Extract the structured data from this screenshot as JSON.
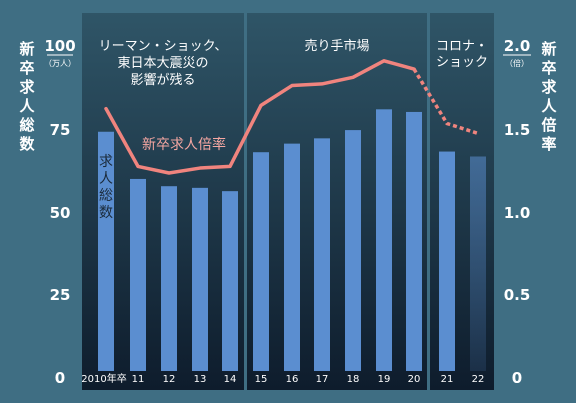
{
  "chart_data": {
    "type": "bar",
    "categories": [
      "2010年卒",
      "11",
      "12",
      "13",
      "14",
      "15",
      "16",
      "17",
      "18",
      "19",
      "20",
      "21",
      "22"
    ],
    "left_axis": {
      "title": "新卒求人総数",
      "unit": "（万人）",
      "ticks": [
        "100",
        "75",
        "50",
        "25",
        "0"
      ],
      "ylim": [
        0,
        100
      ]
    },
    "right_axis": {
      "title": "新卒求人倍率",
      "unit": "（倍）",
      "ticks": [
        "2.0",
        "1.5",
        "1.0",
        "0.5",
        "0"
      ],
      "ylim": [
        0,
        2.0
      ]
    },
    "series": [
      {
        "name": "求人総数",
        "type": "bar",
        "axis": "left",
        "values": [
          72.5,
          58.2,
          56.0,
          55.5,
          54.5,
          66.3,
          68.9,
          70.5,
          73.0,
          79.3,
          78.5,
          66.5,
          65.0
        ],
        "color": "#5b8ed0"
      },
      {
        "name": "新卒求人倍率",
        "type": "line",
        "axis": "right",
        "values": [
          1.59,
          1.24,
          1.2,
          1.23,
          1.24,
          1.61,
          1.73,
          1.74,
          1.78,
          1.88,
          1.83,
          1.5,
          1.44
        ],
        "dashed_from_index": 11,
        "color": "#f0847e"
      }
    ],
    "periods": [
      {
        "label_lines": [
          "リーマン・ショック、",
          "東日本大震災の",
          "影響が残る"
        ],
        "from": 0,
        "to": 4
      },
      {
        "label_lines": [
          "売り手市場"
        ],
        "from": 5,
        "to": 10
      },
      {
        "label_lines": [
          "コロナ・",
          "ショック"
        ],
        "from": 11,
        "to": 12
      }
    ],
    "grid": false,
    "background": "#3f6e83",
    "panel_top_color": "#2f5567",
    "panel_bottom_color": "#0e1c2c"
  }
}
